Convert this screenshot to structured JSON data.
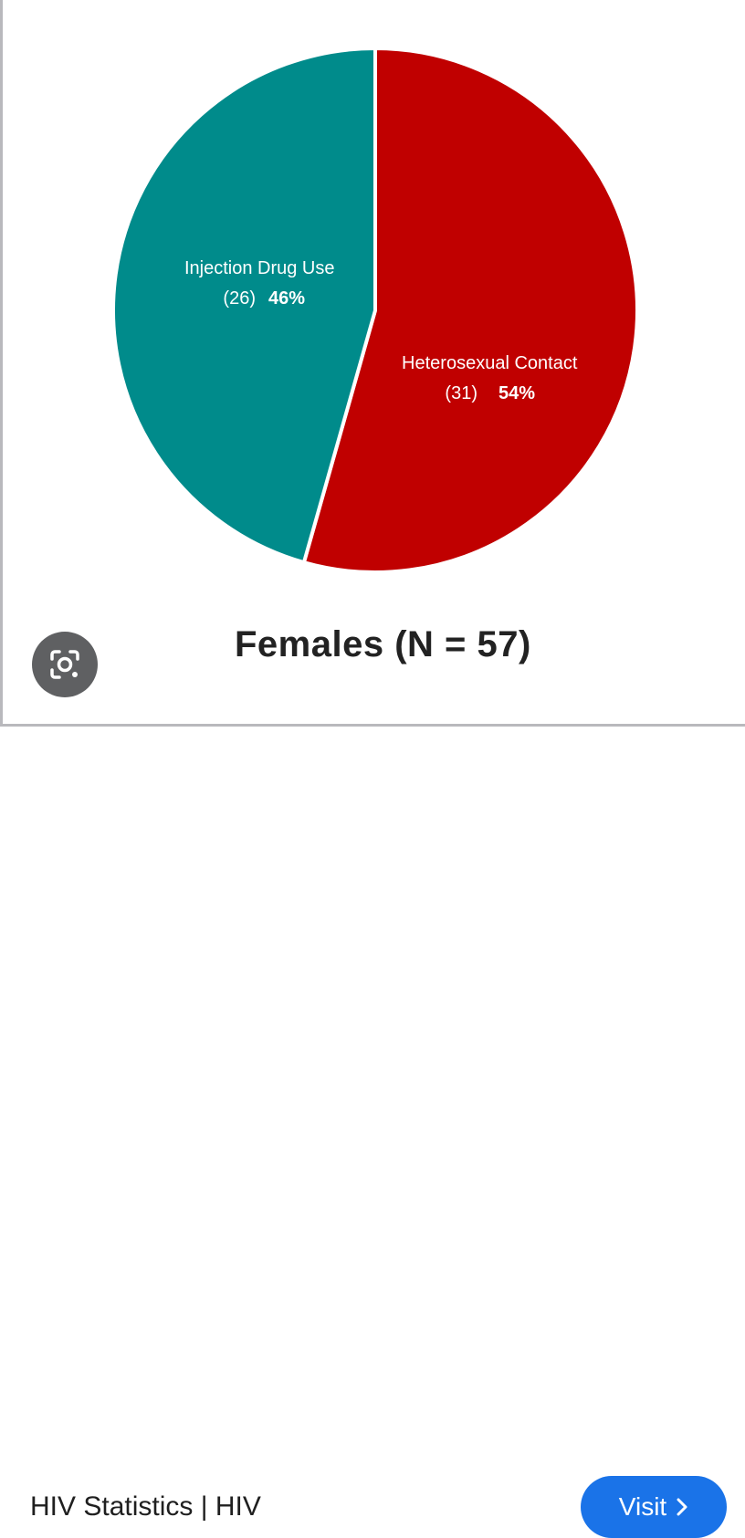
{
  "chart_data": {
    "type": "pie",
    "title": "Females (N = 57)",
    "slices": [
      {
        "name": "Heterosexual Contact",
        "count": "(31)",
        "percent_label": "54%",
        "value": 31,
        "color": "#c00000"
      },
      {
        "name": "Injection Drug Use",
        "count": "(26)",
        "percent_label": "46%",
        "value": 26,
        "color": "#008b8b"
      }
    ],
    "start": "12 o'clock, clockwise"
  },
  "lens": {
    "icon": "google-lens-icon"
  },
  "footer": {
    "source_title": "HIV Statistics | HIV",
    "visit_label": "Visit",
    "visit_icon": "chevron-right-icon",
    "visit_color": "#1a73e8"
  }
}
